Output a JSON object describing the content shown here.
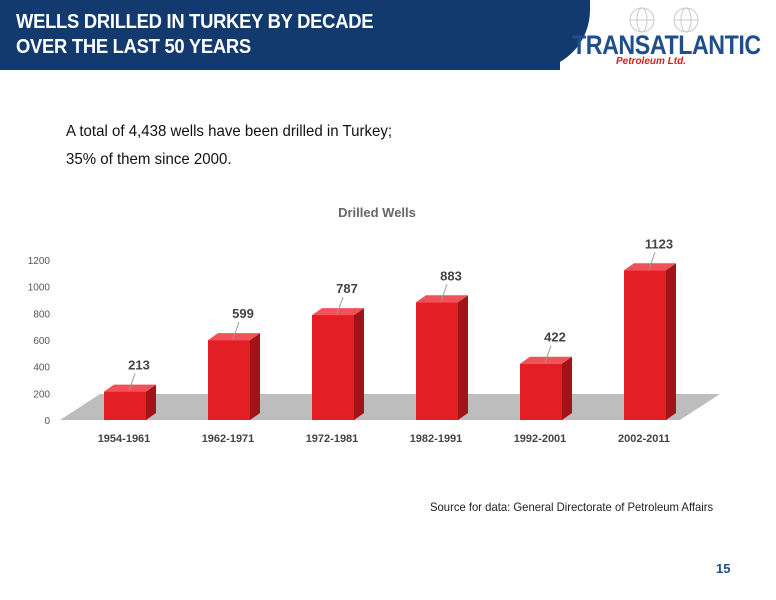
{
  "header": {
    "title_line1": "WELLS DRILLED IN TURKEY BY DECADE",
    "title_line2": "OVER THE LAST 50 YEARS"
  },
  "logo": {
    "name": "TRANSATLANTIC",
    "sub": "Petroleum Ltd.",
    "icon": "globe-icon"
  },
  "subtitle": {
    "line1": "A total of 4,438 wells have been drilled in Turkey;",
    "line2": "35% of them since 2000."
  },
  "chart_data": {
    "type": "bar",
    "title": "Drilled Wells",
    "categories": [
      "1954-1961",
      "1962-1971",
      "1972-1981",
      "1982-1991",
      "1992-2001",
      "2002-2011"
    ],
    "values": [
      213,
      599,
      787,
      883,
      422,
      1123
    ],
    "yticks": [
      0,
      200,
      400,
      600,
      800,
      1000,
      1200
    ],
    "ylim": [
      0,
      1200
    ],
    "bar_color": "#e31e24",
    "legend": "none",
    "grid": false
  },
  "source": "Source for data: General Directorate of Petroleum Affairs",
  "page_number": "15",
  "colors": {
    "header_bg": "#123a6e",
    "logo_blue": "#1f4e8c",
    "logo_red": "#d42027"
  }
}
